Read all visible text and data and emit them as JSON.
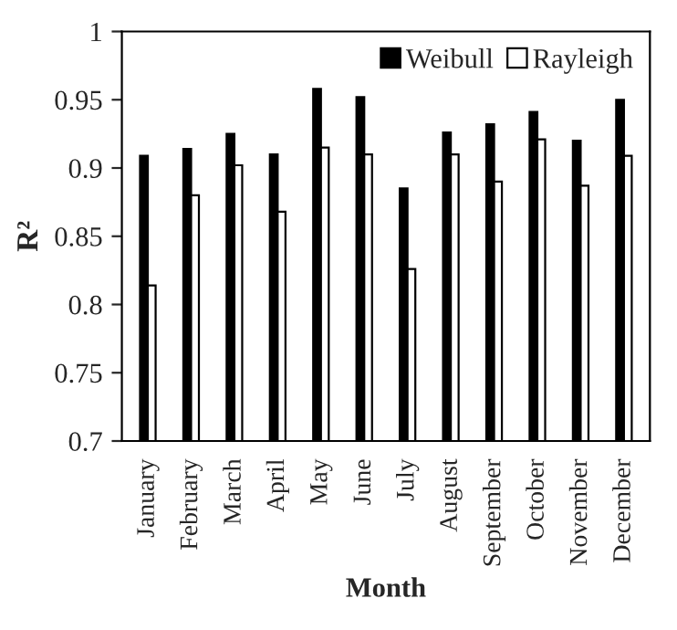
{
  "chart_data": {
    "type": "bar",
    "xlabel": "Month",
    "ylabel": "R²",
    "categories": [
      "January",
      "February",
      "March",
      "April",
      "May",
      "June",
      "July",
      "August",
      "September",
      "October",
      "November",
      "December"
    ],
    "series": [
      {
        "name": "Weibull",
        "color": "#000000",
        "values": [
          0.909,
          0.914,
          0.925,
          0.91,
          0.958,
          0.952,
          0.885,
          0.926,
          0.932,
          0.941,
          0.92,
          0.95
        ]
      },
      {
        "name": "Rayleigh",
        "color": "#ffffff",
        "values": [
          0.814,
          0.88,
          0.902,
          0.868,
          0.915,
          0.91,
          0.826,
          0.91,
          0.89,
          0.921,
          0.887,
          0.909
        ]
      }
    ],
    "ylim": [
      0.7,
      1
    ],
    "yticks": [
      0.7,
      0.75,
      0.8,
      0.85,
      0.9,
      0.95,
      1
    ],
    "grid": false,
    "legend": "top right"
  }
}
